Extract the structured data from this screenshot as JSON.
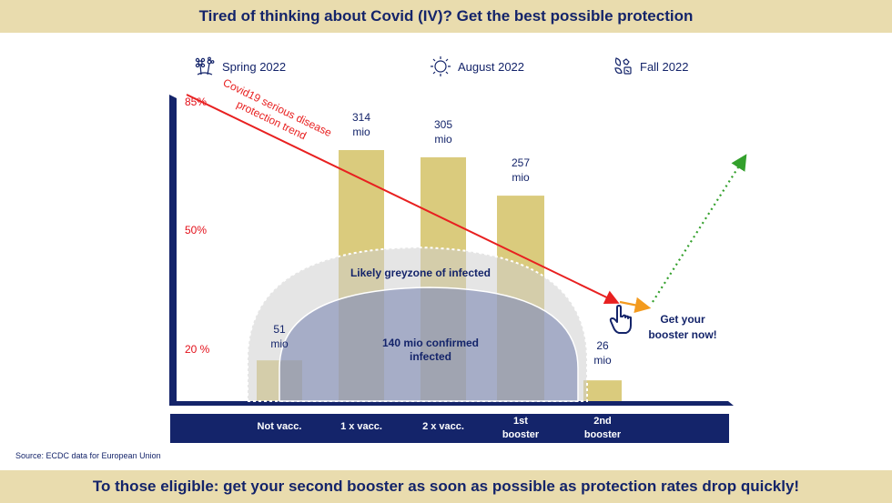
{
  "header": {
    "title": "Tired of thinking about Covid (IV)? Get the best possible protection"
  },
  "footer": {
    "message": "To those eligible: get your second booster as soon as possible as protection rates drop quickly!"
  },
  "seasons": [
    {
      "label": "Spring 2022",
      "icon": "flowers-icon"
    },
    {
      "label": "August 2022",
      "icon": "sun-icon"
    },
    {
      "label": "Fall 2022",
      "icon": "leaves-icon"
    }
  ],
  "source": "Source: ECDC data for European Union",
  "chart_data": {
    "type": "bar",
    "title": "Tired of thinking about Covid (IV)? Get the best possible protection",
    "categories": [
      "Not vacc.",
      "1 x vacc.",
      "2 x vacc.",
      "1st booster",
      "2nd booster"
    ],
    "category_lines": [
      [
        "Not vacc."
      ],
      [
        "1 x vacc."
      ],
      [
        "2 x vacc."
      ],
      [
        "1st",
        "booster"
      ],
      [
        "2nd",
        "booster"
      ]
    ],
    "values": [
      51,
      314,
      305,
      257,
      26
    ],
    "value_unit": "mio",
    "value_labels": [
      [
        "51",
        "mio"
      ],
      [
        "314",
        "mio"
      ],
      [
        "305",
        "mio"
      ],
      [
        "257",
        "mio"
      ],
      [
        "26",
        "mio"
      ]
    ],
    "ylim": [
      0,
      340
    ],
    "protection_ticks": [
      {
        "label": "85%",
        "value": 85
      },
      {
        "label": "50%",
        "value": 50
      },
      {
        "label": "20 %",
        "value": 20
      }
    ],
    "protection_axis_color": "#e3101a",
    "bar_color": "#dacb7d",
    "axis_color": "#14246a",
    "trend": {
      "label_lines": [
        "Covid19 serious disease",
        "protection trend"
      ],
      "color": "#e82020",
      "from_percent": 85,
      "to_percent": 28,
      "booster_arrow_color": "#f39a1e",
      "rebound_color": "#33a02c"
    },
    "annotations": {
      "greyzone": "Likely greyzone of infected",
      "confirmed_lines": [
        "140 mio confirmed",
        "infected"
      ],
      "cta_lines": [
        "Get your",
        "booster now!"
      ]
    }
  }
}
